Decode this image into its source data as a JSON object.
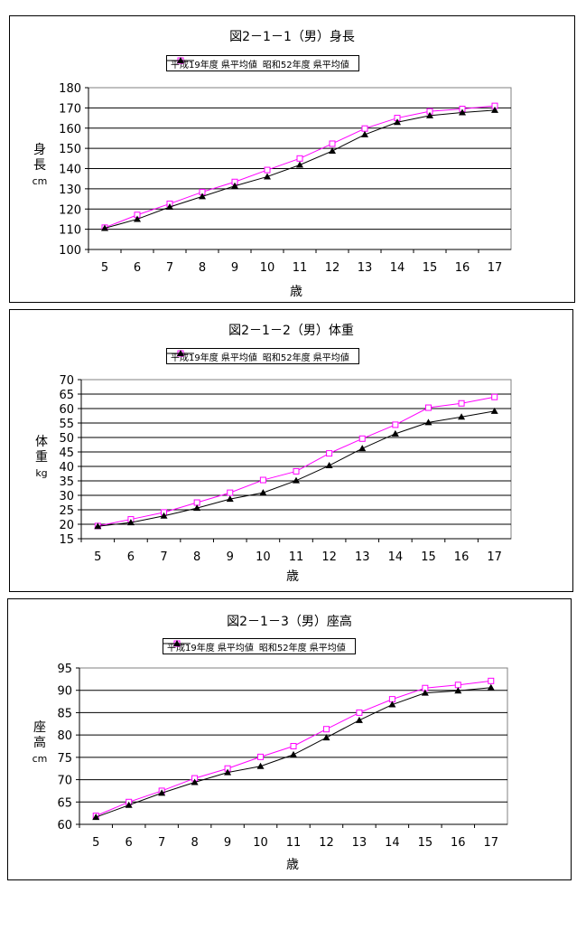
{
  "charts": [
    {
      "title": "図2－1－1（男）身長",
      "ylabel_chars": [
        "身",
        "長"
      ],
      "ylabel_unit": "cm",
      "xlabel": "歳"
    },
    {
      "title": "図2－1－2（男）体重",
      "ylabel_chars": [
        "体",
        "重"
      ],
      "ylabel_unit": "kg",
      "xlabel": "歳"
    },
    {
      "title": "図2－1－3（男）座高",
      "ylabel_chars": [
        "座",
        "高"
      ],
      "ylabel_unit": "cm",
      "xlabel": "歳"
    }
  ],
  "legend": {
    "series_a": "平成19年度 県平均値",
    "series_b": "昭和52年度 県平均値"
  },
  "colors": {
    "series_a": "#ff00ff",
    "series_b": "#000000"
  },
  "chart_data": [
    {
      "type": "line",
      "title": "図2－1－1（男）身長",
      "xlabel": "歳",
      "ylabel": "身長 cm",
      "x": [
        5,
        6,
        7,
        8,
        9,
        10,
        11,
        12,
        13,
        14,
        15,
        16,
        17
      ],
      "ylim": [
        100,
        180
      ],
      "yticks": [
        100,
        110,
        120,
        130,
        140,
        150,
        160,
        170,
        180
      ],
      "grid": true,
      "legend": "top",
      "series": [
        {
          "name": "平成19年度 県平均値",
          "values": [
            110.8,
            117.1,
            122.6,
            128.4,
            133.4,
            139.3,
            145.0,
            152.3,
            159.8,
            165.0,
            168.3,
            169.5,
            171.0
          ]
        },
        {
          "name": "昭和52年度 県平均値",
          "values": [
            110.5,
            115.0,
            121.0,
            126.2,
            131.4,
            136.0,
            141.8,
            148.7,
            156.8,
            162.9,
            166.2,
            167.7,
            168.9
          ]
        }
      ]
    },
    {
      "type": "line",
      "title": "図2－1－2（男）体重",
      "xlabel": "歳",
      "ylabel": "体重 kg",
      "x": [
        5,
        6,
        7,
        8,
        9,
        10,
        11,
        12,
        13,
        14,
        15,
        16,
        17
      ],
      "ylim": [
        15,
        70
      ],
      "yticks": [
        15,
        20,
        25,
        30,
        35,
        40,
        45,
        50,
        55,
        60,
        65,
        70
      ],
      "grid": true,
      "legend": "top",
      "series": [
        {
          "name": "平成19年度 県平均値",
          "values": [
            19.4,
            21.7,
            24.1,
            27.5,
            30.9,
            35.3,
            38.3,
            44.5,
            49.6,
            54.4,
            60.3,
            61.8,
            64.0
          ]
        },
        {
          "name": "昭和52年度 県平均値",
          "values": [
            19.3,
            20.6,
            22.9,
            25.6,
            28.7,
            30.9,
            35.1,
            40.3,
            46.2,
            51.3,
            55.2,
            57.1,
            59.1
          ]
        }
      ]
    },
    {
      "type": "line",
      "title": "図2－1－3（男）座高",
      "xlabel": "歳",
      "ylabel": "座高 cm",
      "x": [
        5,
        6,
        7,
        8,
        9,
        10,
        11,
        12,
        13,
        14,
        15,
        16,
        17
      ],
      "ylim": [
        60,
        95
      ],
      "yticks": [
        60,
        65,
        70,
        75,
        80,
        85,
        90,
        95
      ],
      "grid": true,
      "legend": "top",
      "series": [
        {
          "name": "平成19年度 県平均値",
          "values": [
            61.9,
            65.0,
            67.5,
            70.3,
            72.5,
            75.1,
            77.5,
            81.3,
            85.0,
            88.0,
            90.5,
            91.2,
            92.1
          ]
        },
        {
          "name": "昭和52年度 県平均値",
          "values": [
            61.6,
            64.3,
            67.0,
            69.4,
            71.6,
            73.0,
            75.6,
            79.4,
            83.3,
            86.8,
            89.4,
            89.9,
            90.6
          ]
        }
      ]
    }
  ]
}
